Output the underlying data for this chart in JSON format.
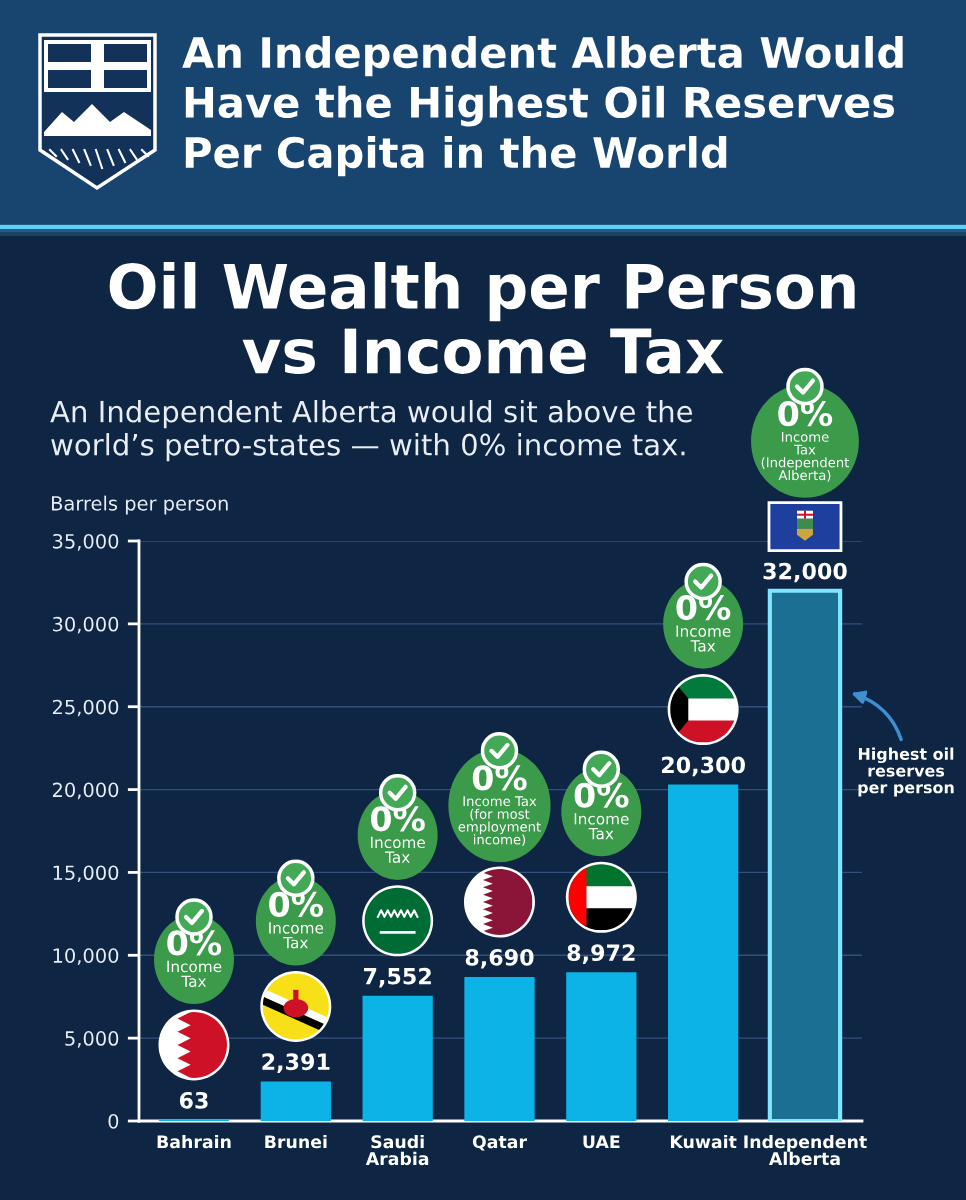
{
  "chart_data": {
    "type": "bar",
    "title": "An Independent Alberta Would\nHave the Highest Oil Reserves\nPer Capita in the World",
    "subtitle": "Oil Wealth per Person\nvs Income Tax",
    "ylabel": "Barrels per person",
    "categories": [
      "Bahrain",
      "Brunei",
      "Saudi\nArabia",
      "Qatar",
      "UAE",
      "Kuwait",
      "Independent\nAlberta"
    ],
    "values": [
      63,
      2391,
      7552,
      8690,
      8972,
      20300,
      32000
    ],
    "value_labels": [
      "63",
      "2,391",
      "7,552",
      "8,690",
      "8,972",
      "20,300",
      "32,000"
    ],
    "colors": [
      "#0bb3e6",
      "#0bb3e6",
      "#0bb3e6",
      "#0bb3e6",
      "#0bb3e6",
      "#0bb3e6",
      "#1a6f92"
    ],
    "ylim": [
      0,
      35000
    ],
    "yticks": [
      0,
      {
        "value": 5000,
        "label": "5,000"
      },
      {
        "value": 10000,
        "label": "10,000"
      },
      {
        "value": 15000,
        "label": "15,000"
      },
      {
        "value": 20000,
        "label": "20,000"
      },
      {
        "value": 25000,
        "label": "25,000"
      },
      {
        "value": 30000,
        "label": "30,000"
      },
      {
        "value": 35000,
        "label": "35,000"
      }
    ],
    "grid": "y",
    "annotations": [
      "An Independent Alberta would sit above the\nworld’s petro-states — with 0% income tax.",
      "0%",
      "Income\nTax",
      "0%",
      "Income\nTax",
      "0%",
      "Income\nTax",
      "0%",
      "Income Tax\n(for most\nemployment\nincome)",
      "0%",
      "Income\nTax",
      "0%",
      "Income\nTax",
      "0%",
      "Income\nTax\n(Independent\nAlberta)",
      "Highest oil\nreserves\nper person"
    ]
  }
}
